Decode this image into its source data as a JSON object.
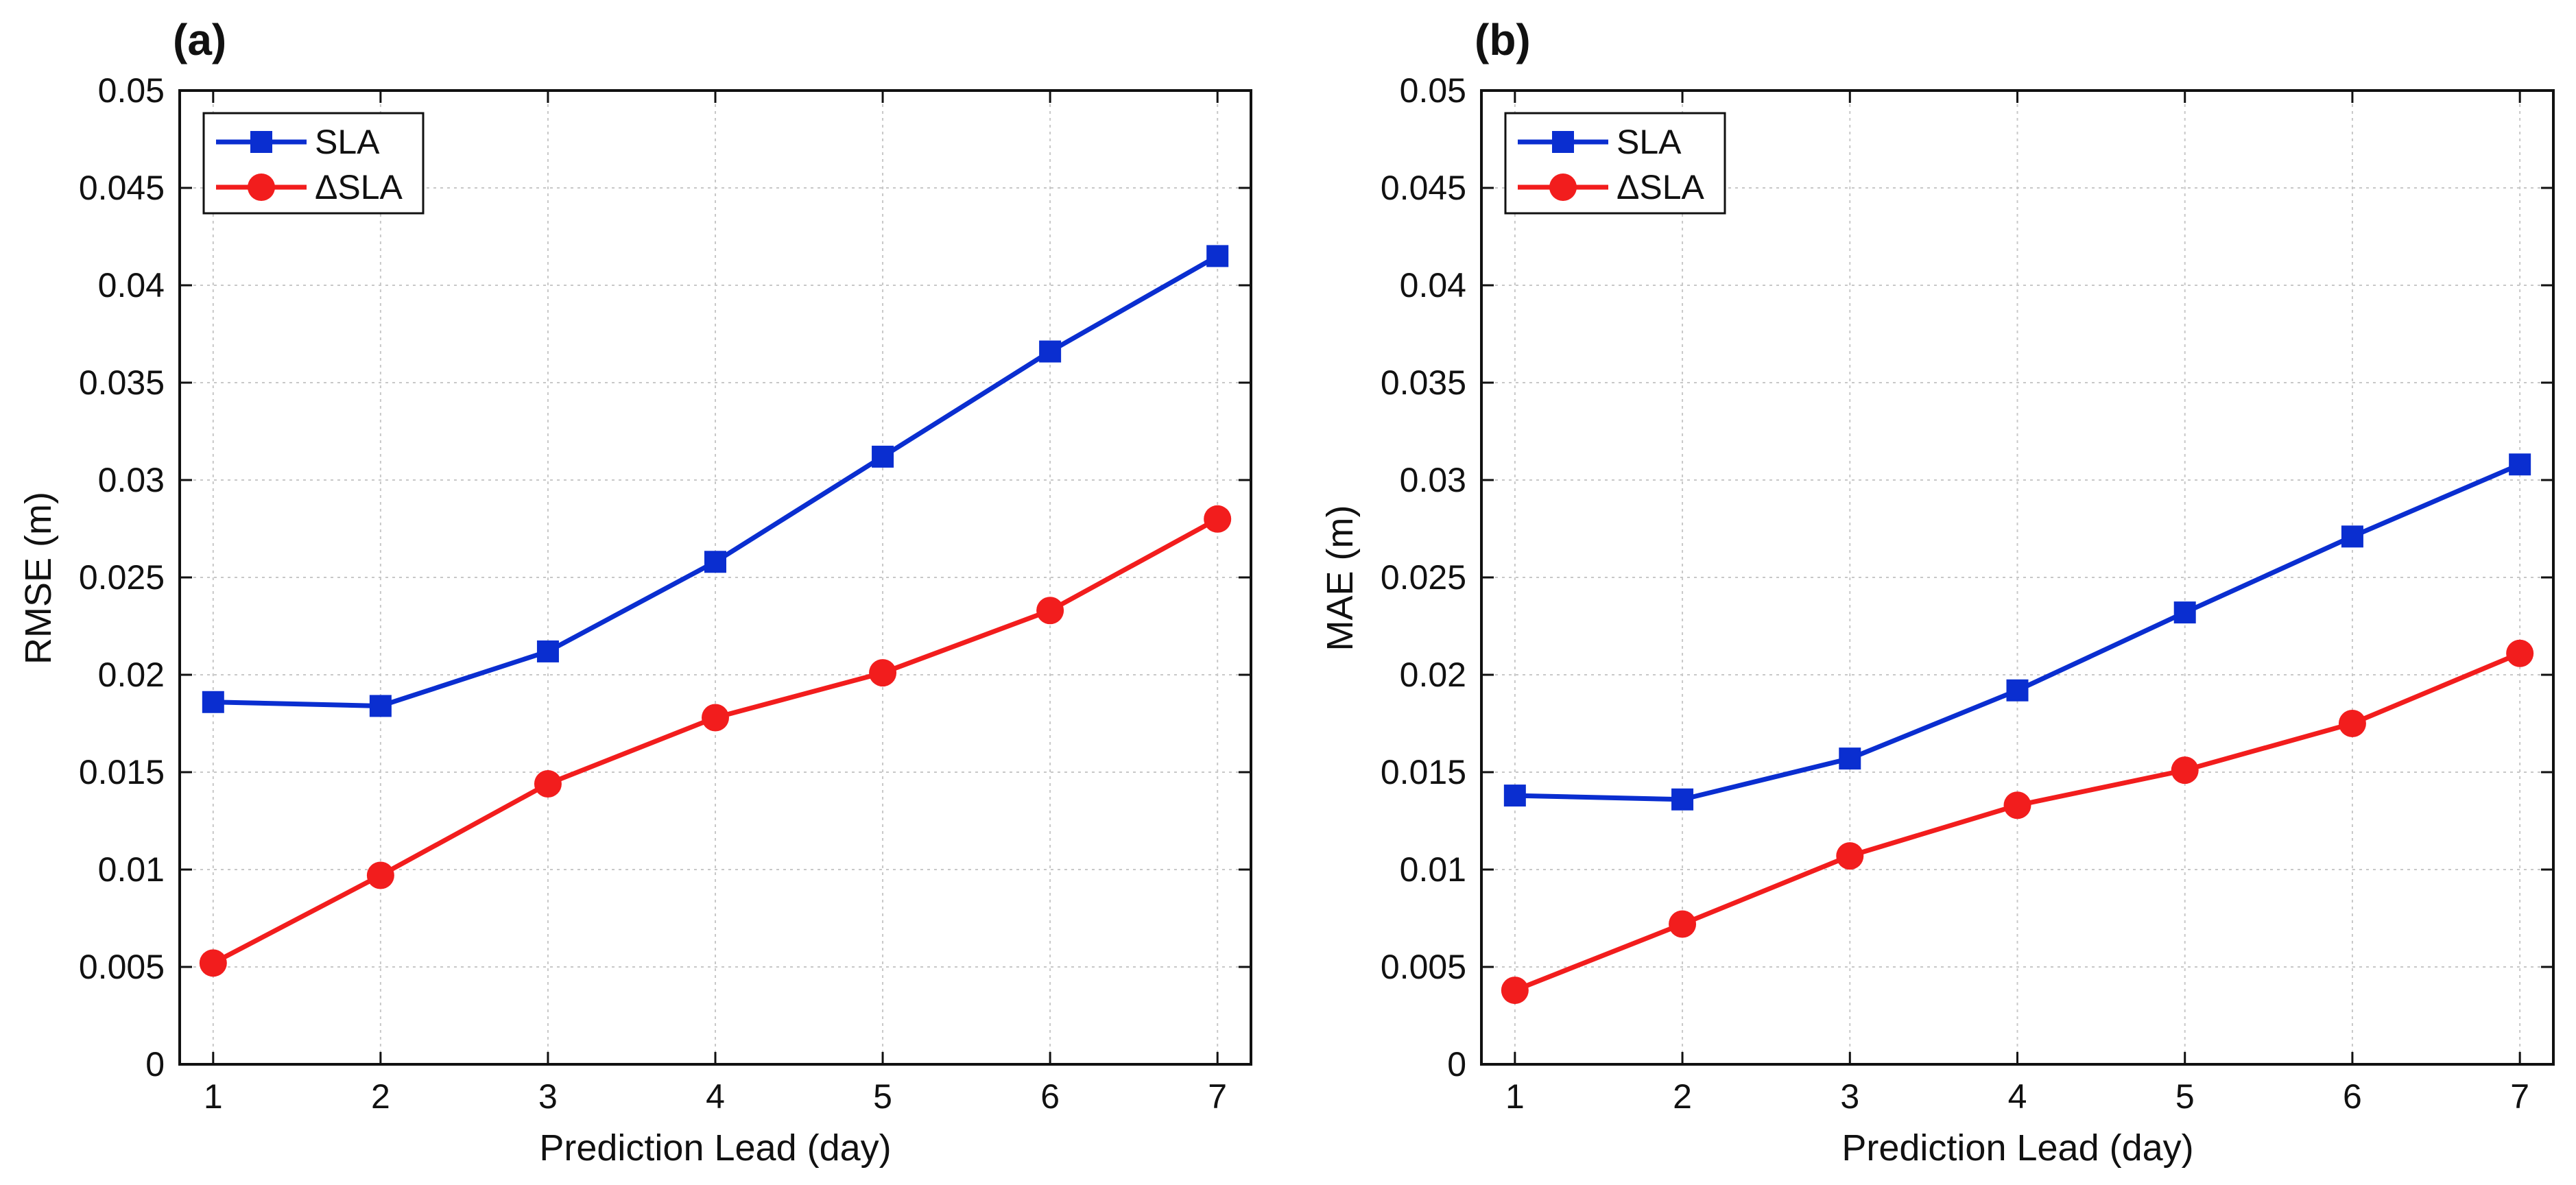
{
  "chart_data": [
    {
      "type": "line",
      "panel_label": "(a)",
      "xlabel": "Prediction Lead (day)",
      "ylabel": "RMSE (m)",
      "x": [
        1,
        2,
        3,
        4,
        5,
        6,
        7
      ],
      "xticks": [
        "1",
        "2",
        "3",
        "4",
        "5",
        "6",
        "7"
      ],
      "xlim": [
        0.8,
        7.2
      ],
      "ylim": [
        0,
        0.05
      ],
      "yticks": [
        "0",
        "0.005",
        "0.01",
        "0.015",
        "0.02",
        "0.025",
        "0.03",
        "0.035",
        "0.04",
        "0.045",
        "0.05"
      ],
      "grid": true,
      "legend": "top-left",
      "series": [
        {
          "name": "SLA",
          "color": "#0a2ed0",
          "marker": "square",
          "values": [
            0.0186,
            0.0184,
            0.0212,
            0.0258,
            0.0312,
            0.0366,
            0.0415
          ]
        },
        {
          "name": "ΔSLA",
          "color": "#f21d1d",
          "marker": "circle",
          "values": [
            0.0052,
            0.0097,
            0.0144,
            0.0178,
            0.0201,
            0.0233,
            0.028
          ]
        }
      ]
    },
    {
      "type": "line",
      "panel_label": "(b)",
      "xlabel": "Prediction Lead (day)",
      "ylabel": "MAE (m)",
      "x": [
        1,
        2,
        3,
        4,
        5,
        6,
        7
      ],
      "xticks": [
        "1",
        "2",
        "3",
        "4",
        "5",
        "6",
        "7"
      ],
      "xlim": [
        0.8,
        7.2
      ],
      "ylim": [
        0,
        0.05
      ],
      "yticks": [
        "0",
        "0.005",
        "0.01",
        "0.015",
        "0.02",
        "0.025",
        "0.03",
        "0.035",
        "0.04",
        "0.045",
        "0.05"
      ],
      "grid": true,
      "legend": "top-left",
      "series": [
        {
          "name": "SLA",
          "color": "#0a2ed0",
          "marker": "square",
          "values": [
            0.0138,
            0.0136,
            0.0157,
            0.0192,
            0.0232,
            0.0271,
            0.0308
          ]
        },
        {
          "name": "ΔSLA",
          "color": "#f21d1d",
          "marker": "circle",
          "values": [
            0.0038,
            0.0072,
            0.0107,
            0.0133,
            0.0151,
            0.0175,
            0.0211
          ]
        }
      ]
    }
  ]
}
